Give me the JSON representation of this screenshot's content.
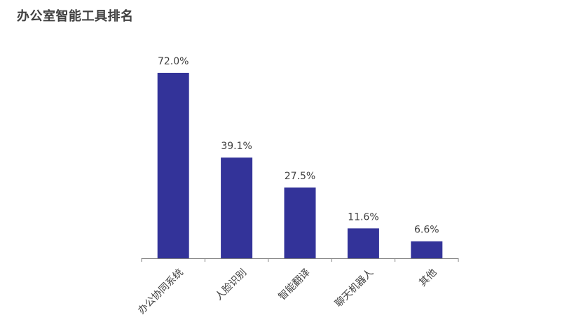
{
  "chart_data": {
    "type": "bar",
    "title": "办公室智能工具排名",
    "categories": [
      "办公协同系统",
      "人脸识别",
      "智能翻译",
      "聊天机器人",
      "其他"
    ],
    "values": [
      72.0,
      39.1,
      27.5,
      11.6,
      6.6
    ],
    "value_labels": [
      "72.0%",
      "39.1%",
      "27.5%",
      "11.6%",
      "6.6%"
    ],
    "unit": "%",
    "ylim": [
      0,
      72
    ],
    "grid": false,
    "legend": "none",
    "bar_color": "#333399",
    "axis_color": "#7f7f7f",
    "text_color": "#404040"
  }
}
